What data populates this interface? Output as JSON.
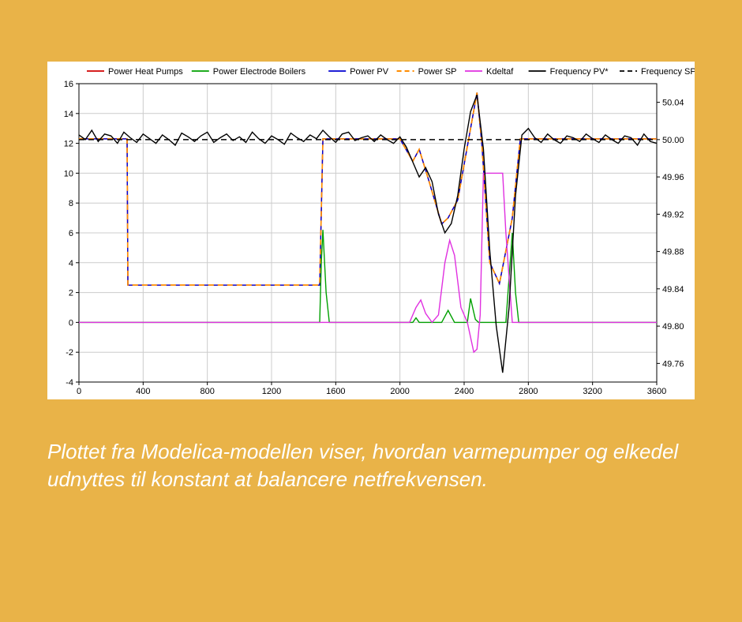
{
  "background_color": "#e9b348",
  "chart_background": "#ffffff",
  "caption": "Plottet fra Modelica-modellen viser, hvordan varmepumper og elkedel udnyttes til konstant at balancere netfrekvensen.",
  "caption_fontsize": 26,
  "caption_color": "#ffffff",
  "chart": {
    "type": "line",
    "x_axis": {
      "min": 0,
      "max": 3600,
      "tick_step": 400
    },
    "y_left": {
      "min": -4,
      "max": 16,
      "tick_step": 2
    },
    "y_right": {
      "min": 49.74,
      "max": 50.06,
      "ticks": [
        49.76,
        49.8,
        49.84,
        49.88,
        49.92,
        49.96,
        50.0,
        50.04
      ]
    },
    "grid_color": "#cccccc",
    "axis_color": "#000000",
    "legend_fontsize": 11,
    "tick_fontsize": 11,
    "legend": [
      {
        "label": "Power Heat Pumps",
        "color": "#d00000",
        "dash": "solid",
        "width": 1.4
      },
      {
        "label": "Power Electrode Boilers",
        "color": "#00a000",
        "dash": "solid",
        "width": 1.4
      },
      {
        "label": "Power PV",
        "color": "#0000d0",
        "dash": "solid",
        "width": 1.4
      },
      {
        "label": "Power SP",
        "color": "#ff8c00",
        "dash": "dashed",
        "width": 1.6
      },
      {
        "label": "Kdeltaf",
        "color": "#e030e0",
        "dash": "solid",
        "width": 1.4
      },
      {
        "label": "Frequency PV*",
        "color": "#000000",
        "dash": "solid",
        "width": 1.4
      },
      {
        "label": "Frequency SP*",
        "color": "#000000",
        "dash": "dashed",
        "width": 1.4
      }
    ],
    "series": {
      "power_heat_pumps": {
        "axis": "left",
        "color": "#d00000",
        "dash": "solid",
        "width": 1.4,
        "points": [
          [
            0,
            12.3
          ],
          [
            300,
            12.3
          ],
          [
            305,
            2.5
          ],
          [
            1500,
            2.5
          ],
          [
            1520,
            12.3
          ],
          [
            2000,
            12.3
          ],
          [
            2080,
            10.8
          ],
          [
            2120,
            11.6
          ],
          [
            2180,
            9.5
          ],
          [
            2260,
            6.6
          ],
          [
            2300,
            7.0
          ],
          [
            2360,
            8.2
          ],
          [
            2440,
            13.0
          ],
          [
            2480,
            15.4
          ],
          [
            2510,
            12.0
          ],
          [
            2560,
            4.0
          ],
          [
            2620,
            2.6
          ],
          [
            2700,
            7.0
          ],
          [
            2750,
            12.3
          ],
          [
            3600,
            12.3
          ]
        ]
      },
      "power_pv": {
        "axis": "left",
        "color": "#0000d0",
        "dash": "solid",
        "width": 1.4,
        "points": [
          [
            0,
            12.3
          ],
          [
            300,
            12.3
          ],
          [
            305,
            2.5
          ],
          [
            1500,
            2.5
          ],
          [
            1520,
            12.3
          ],
          [
            2000,
            12.3
          ],
          [
            2080,
            10.8
          ],
          [
            2120,
            11.6
          ],
          [
            2180,
            9.5
          ],
          [
            2260,
            6.6
          ],
          [
            2300,
            7.0
          ],
          [
            2360,
            8.2
          ],
          [
            2440,
            13.0
          ],
          [
            2480,
            15.4
          ],
          [
            2510,
            12.0
          ],
          [
            2560,
            4.0
          ],
          [
            2620,
            2.6
          ],
          [
            2700,
            7.0
          ],
          [
            2750,
            12.3
          ],
          [
            3600,
            12.3
          ]
        ]
      },
      "power_sp": {
        "axis": "left",
        "color": "#ff8c00",
        "dash": "dashed",
        "width": 1.7,
        "points": [
          [
            0,
            12.3
          ],
          [
            300,
            12.3
          ],
          [
            305,
            2.5
          ],
          [
            1500,
            2.5
          ],
          [
            1520,
            12.3
          ],
          [
            2000,
            12.3
          ],
          [
            2080,
            10.8
          ],
          [
            2120,
            11.6
          ],
          [
            2180,
            9.5
          ],
          [
            2260,
            6.6
          ],
          [
            2300,
            7.0
          ],
          [
            2360,
            8.2
          ],
          [
            2440,
            13.0
          ],
          [
            2480,
            15.4
          ],
          [
            2510,
            12.0
          ],
          [
            2560,
            4.0
          ],
          [
            2620,
            2.6
          ],
          [
            2700,
            7.0
          ],
          [
            2750,
            12.3
          ],
          [
            3600,
            12.3
          ]
        ]
      },
      "power_electrode_boilers": {
        "axis": "left",
        "color": "#00a000",
        "dash": "solid",
        "width": 1.4,
        "points": [
          [
            0,
            0
          ],
          [
            1500,
            0
          ],
          [
            1510,
            4.0
          ],
          [
            1520,
            6.2
          ],
          [
            1540,
            2.0
          ],
          [
            1560,
            0
          ],
          [
            2080,
            0
          ],
          [
            2100,
            0.3
          ],
          [
            2120,
            0
          ],
          [
            2260,
            0
          ],
          [
            2300,
            0.8
          ],
          [
            2340,
            0
          ],
          [
            2420,
            0
          ],
          [
            2440,
            1.6
          ],
          [
            2470,
            0.2
          ],
          [
            2490,
            0
          ],
          [
            2660,
            0
          ],
          [
            2680,
            3.0
          ],
          [
            2700,
            6.0
          ],
          [
            2720,
            2.0
          ],
          [
            2740,
            0
          ],
          [
            3600,
            0
          ]
        ]
      },
      "kdeltaf": {
        "axis": "left",
        "color": "#e030e0",
        "dash": "solid",
        "width": 1.4,
        "points": [
          [
            0,
            0
          ],
          [
            2060,
            0
          ],
          [
            2100,
            1.0
          ],
          [
            2130,
            1.5
          ],
          [
            2160,
            0.6
          ],
          [
            2200,
            0
          ],
          [
            2240,
            0.5
          ],
          [
            2280,
            4.0
          ],
          [
            2310,
            5.5
          ],
          [
            2340,
            4.5
          ],
          [
            2380,
            1.0
          ],
          [
            2420,
            0.0
          ],
          [
            2460,
            -2.0
          ],
          [
            2480,
            -1.8
          ],
          [
            2500,
            0.5
          ],
          [
            2520,
            10.0
          ],
          [
            2560,
            10.0
          ],
          [
            2600,
            10.0
          ],
          [
            2640,
            10.0
          ],
          [
            2660,
            6.0
          ],
          [
            2700,
            0
          ],
          [
            3600,
            0
          ]
        ]
      },
      "frequency_pv": {
        "axis": "right",
        "color": "#000000",
        "dash": "solid",
        "width": 1.4,
        "points": [
          [
            0,
            50.005
          ],
          [
            40,
            50.0
          ],
          [
            80,
            50.01
          ],
          [
            120,
            49.998
          ],
          [
            160,
            50.006
          ],
          [
            200,
            50.004
          ],
          [
            240,
            49.996
          ],
          [
            280,
            50.008
          ],
          [
            320,
            50.002
          ],
          [
            360,
            49.997
          ],
          [
            400,
            50.006
          ],
          [
            440,
            50.001
          ],
          [
            480,
            49.996
          ],
          [
            520,
            50.005
          ],
          [
            560,
            50.0
          ],
          [
            600,
            49.994
          ],
          [
            640,
            50.007
          ],
          [
            680,
            50.003
          ],
          [
            720,
            49.998
          ],
          [
            760,
            50.004
          ],
          [
            800,
            50.008
          ],
          [
            840,
            49.997
          ],
          [
            880,
            50.002
          ],
          [
            920,
            50.006
          ],
          [
            960,
            49.999
          ],
          [
            1000,
            50.003
          ],
          [
            1040,
            49.997
          ],
          [
            1080,
            50.008
          ],
          [
            1120,
            50.001
          ],
          [
            1160,
            49.996
          ],
          [
            1200,
            50.004
          ],
          [
            1240,
            50.0
          ],
          [
            1280,
            49.995
          ],
          [
            1320,
            50.007
          ],
          [
            1360,
            50.002
          ],
          [
            1400,
            49.998
          ],
          [
            1440,
            50.005
          ],
          [
            1480,
            50.001
          ],
          [
            1520,
            50.01
          ],
          [
            1560,
            50.003
          ],
          [
            1600,
            49.997
          ],
          [
            1640,
            50.006
          ],
          [
            1680,
            50.008
          ],
          [
            1720,
            49.999
          ],
          [
            1760,
            50.002
          ],
          [
            1800,
            50.004
          ],
          [
            1840,
            49.998
          ],
          [
            1880,
            50.005
          ],
          [
            1920,
            50.0
          ],
          [
            1960,
            49.996
          ],
          [
            2000,
            50.003
          ],
          [
            2040,
            49.992
          ],
          [
            2080,
            49.976
          ],
          [
            2120,
            49.96
          ],
          [
            2160,
            49.97
          ],
          [
            2200,
            49.955
          ],
          [
            2240,
            49.92
          ],
          [
            2280,
            49.9
          ],
          [
            2320,
            49.91
          ],
          [
            2360,
            49.94
          ],
          [
            2400,
            49.99
          ],
          [
            2440,
            50.03
          ],
          [
            2480,
            50.048
          ],
          [
            2520,
            49.99
          ],
          [
            2560,
            49.88
          ],
          [
            2600,
            49.8
          ],
          [
            2640,
            49.75
          ],
          [
            2680,
            49.82
          ],
          [
            2720,
            49.94
          ],
          [
            2760,
            50.005
          ],
          [
            2800,
            50.012
          ],
          [
            2840,
            50.002
          ],
          [
            2880,
            49.997
          ],
          [
            2920,
            50.006
          ],
          [
            2960,
            50.0
          ],
          [
            3000,
            49.996
          ],
          [
            3040,
            50.004
          ],
          [
            3080,
            50.002
          ],
          [
            3120,
            49.998
          ],
          [
            3160,
            50.006
          ],
          [
            3200,
            50.001
          ],
          [
            3240,
            49.997
          ],
          [
            3280,
            50.005
          ],
          [
            3320,
            50.0
          ],
          [
            3360,
            49.996
          ],
          [
            3400,
            50.004
          ],
          [
            3440,
            50.002
          ],
          [
            3480,
            49.994
          ],
          [
            3520,
            50.006
          ],
          [
            3560,
            49.998
          ],
          [
            3600,
            49.996
          ]
        ]
      },
      "frequency_sp": {
        "axis": "right",
        "color": "#000000",
        "dash": "dashed",
        "width": 1.4,
        "points": [
          [
            0,
            50.0
          ],
          [
            3600,
            50.0
          ]
        ]
      }
    }
  }
}
